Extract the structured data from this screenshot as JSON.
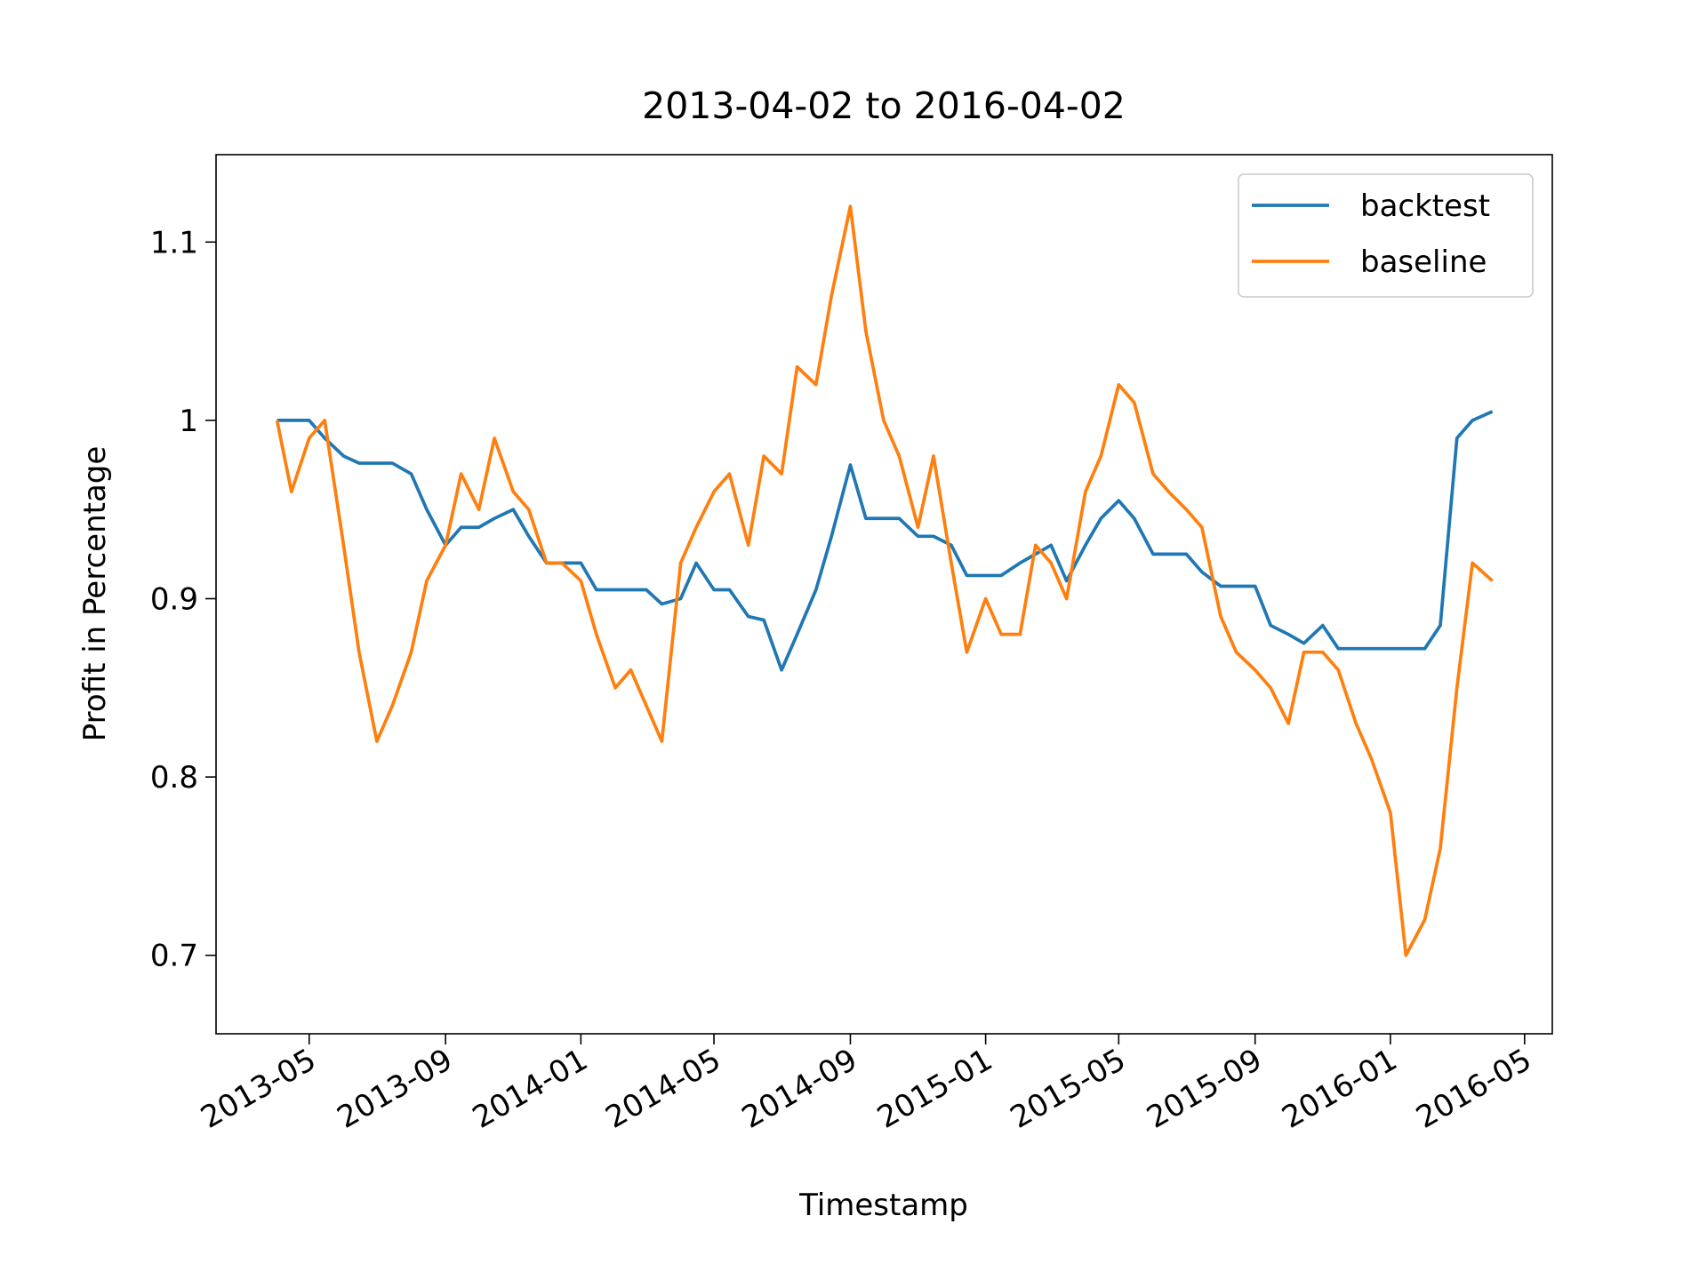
{
  "chart_data": {
    "type": "line",
    "title": "2013-04-02  to  2016-04-02",
    "xlabel": "Timestamp",
    "ylabel": "Profit in Percentage",
    "x": [
      "2013-04-02",
      "2013-04-15",
      "2013-05-01",
      "2013-05-15",
      "2013-06-01",
      "2013-06-15",
      "2013-07-01",
      "2013-07-15",
      "2013-08-01",
      "2013-08-15",
      "2013-09-01",
      "2013-09-15",
      "2013-10-01",
      "2013-10-15",
      "2013-11-01",
      "2013-11-15",
      "2013-12-01",
      "2013-12-15",
      "2014-01-01",
      "2014-01-15",
      "2014-02-01",
      "2014-02-15",
      "2014-03-01",
      "2014-03-15",
      "2014-04-01",
      "2014-04-15",
      "2014-05-01",
      "2014-05-15",
      "2014-06-01",
      "2014-06-15",
      "2014-07-01",
      "2014-07-15",
      "2014-08-01",
      "2014-08-15",
      "2014-09-01",
      "2014-09-15",
      "2014-10-01",
      "2014-10-15",
      "2014-11-01",
      "2014-11-15",
      "2014-12-01",
      "2014-12-15",
      "2015-01-01",
      "2015-01-15",
      "2015-02-01",
      "2015-02-15",
      "2015-03-01",
      "2015-03-15",
      "2015-04-01",
      "2015-04-15",
      "2015-05-01",
      "2015-05-15",
      "2015-06-01",
      "2015-06-15",
      "2015-07-01",
      "2015-07-15",
      "2015-08-01",
      "2015-08-15",
      "2015-09-01",
      "2015-09-15",
      "2015-10-01",
      "2015-10-15",
      "2015-11-01",
      "2015-11-15",
      "2015-12-01",
      "2015-12-15",
      "2016-01-01",
      "2016-01-15",
      "2016-02-01",
      "2016-02-15",
      "2016-03-01",
      "2016-03-15",
      "2016-04-02"
    ],
    "series": [
      {
        "name": "backtest",
        "color": "#1f77b4",
        "values": [
          1.0,
          1.0,
          1.0,
          0.99,
          0.98,
          0.976,
          0.976,
          0.976,
          0.97,
          0.95,
          0.93,
          0.94,
          0.94,
          0.945,
          0.95,
          0.935,
          0.92,
          0.92,
          0.92,
          0.905,
          0.905,
          0.905,
          0.905,
          0.897,
          0.9,
          0.92,
          0.905,
          0.905,
          0.89,
          0.888,
          0.86,
          0.88,
          0.905,
          0.935,
          0.975,
          0.945,
          0.945,
          0.945,
          0.935,
          0.935,
          0.93,
          0.913,
          0.913,
          0.913,
          0.92,
          0.925,
          0.93,
          0.91,
          0.93,
          0.945,
          0.955,
          0.945,
          0.925,
          0.925,
          0.925,
          0.915,
          0.907,
          0.907,
          0.907,
          0.885,
          0.88,
          0.875,
          0.885,
          0.872,
          0.872,
          0.872,
          0.872,
          0.872,
          0.872,
          0.885,
          0.99,
          1.0,
          1.005
        ]
      },
      {
        "name": "baseline",
        "color": "#ff7f0e",
        "values": [
          1.0,
          0.96,
          0.99,
          1.0,
          0.93,
          0.87,
          0.82,
          0.84,
          0.87,
          0.91,
          0.93,
          0.97,
          0.95,
          0.99,
          0.96,
          0.95,
          0.92,
          0.92,
          0.91,
          0.88,
          0.85,
          0.86,
          0.84,
          0.82,
          0.92,
          0.94,
          0.96,
          0.97,
          0.93,
          0.98,
          0.97,
          1.03,
          1.02,
          1.07,
          1.12,
          1.05,
          1.0,
          0.98,
          0.94,
          0.98,
          0.92,
          0.87,
          0.9,
          0.88,
          0.88,
          0.93,
          0.92,
          0.9,
          0.96,
          0.98,
          1.02,
          1.01,
          0.97,
          0.96,
          0.95,
          0.94,
          0.89,
          0.87,
          0.86,
          0.85,
          0.83,
          0.87,
          0.87,
          0.86,
          0.83,
          0.81,
          0.78,
          0.7,
          0.72,
          0.76,
          0.85,
          0.92,
          0.91
        ]
      }
    ],
    "xlim": [
      "2013-02-06",
      "2016-05-26"
    ],
    "xticks": [
      {
        "value": "2013-05-01",
        "label": "2013-05"
      },
      {
        "value": "2013-09-01",
        "label": "2013-09"
      },
      {
        "value": "2014-01-01",
        "label": "2014-01"
      },
      {
        "value": "2014-05-01",
        "label": "2014-05"
      },
      {
        "value": "2014-09-01",
        "label": "2014-09"
      },
      {
        "value": "2015-01-01",
        "label": "2015-01"
      },
      {
        "value": "2015-05-01",
        "label": "2015-05"
      },
      {
        "value": "2015-09-01",
        "label": "2015-09"
      },
      {
        "value": "2016-01-01",
        "label": "2016-01"
      },
      {
        "value": "2016-05-01",
        "label": "2016-05"
      }
    ],
    "ylim": [
      0.656,
      1.149
    ],
    "yticks": [
      0.7,
      0.8,
      0.9,
      1.0,
      1.1
    ],
    "grid": false,
    "legend": "upper right"
  }
}
